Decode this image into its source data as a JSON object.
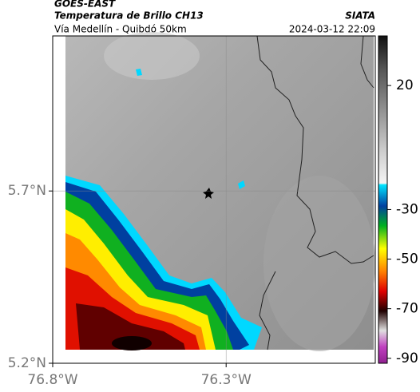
{
  "header": {
    "source": "GOES-EAST",
    "title": "Temperatura de Brillo CH13",
    "org": "SIATA",
    "subtitle": "Vía Medellín - Quibdó 50km",
    "datetime": "2024-03-12 22:09"
  },
  "map": {
    "xlim": [
      -76.8,
      -75.87
    ],
    "ylim": [
      5.2,
      6.15
    ],
    "xticks": [
      {
        "value": -76.8,
        "label": "76.8°W"
      },
      {
        "value": -76.3,
        "label": "76.3°W"
      }
    ],
    "yticks": [
      {
        "value": 5.7,
        "label": "5.7°N"
      },
      {
        "value": 5.2,
        "label": "5.2°N"
      }
    ]
  },
  "colorbar": {
    "lim": [
      -92,
      40
    ],
    "ticks": [
      20,
      -30,
      -50,
      -70,
      -90
    ]
  }
}
